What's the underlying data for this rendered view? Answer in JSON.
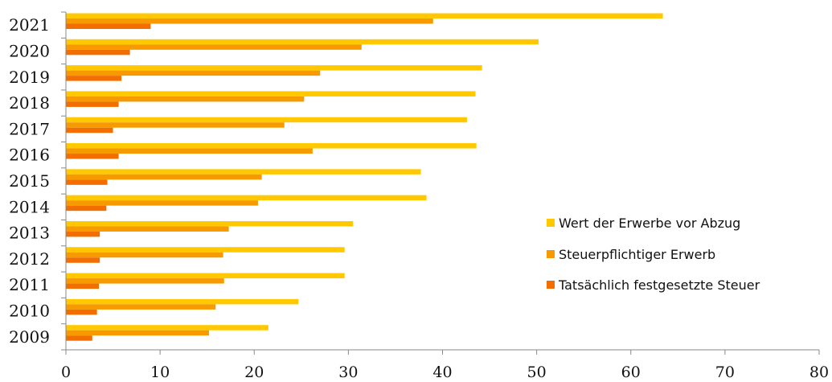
{
  "chart_data": {
    "type": "bar",
    "orientation": "horizontal",
    "categories": [
      "2021",
      "2020",
      "2019",
      "2018",
      "2017",
      "2016",
      "2015",
      "2014",
      "2013",
      "2012",
      "2011",
      "2010",
      "2009"
    ],
    "series": [
      {
        "name": "Wert der Erwerbe vor Abzug",
        "color": "#FFC800",
        "values": [
          63.4,
          50.2,
          44.2,
          43.5,
          42.6,
          43.6,
          37.7,
          38.3,
          30.5,
          29.6,
          29.6,
          24.7,
          21.5
        ]
      },
      {
        "name": "Steuerpflichtiger Erwerb",
        "color": "#F79A00",
        "values": [
          39.0,
          31.4,
          27.0,
          25.3,
          23.2,
          26.2,
          20.8,
          20.4,
          17.3,
          16.7,
          16.8,
          15.9,
          15.2
        ]
      },
      {
        "name": "Tatsächlich festgesetzte Steuer",
        "color": "#F26E00",
        "values": [
          9.0,
          6.8,
          5.9,
          5.6,
          5.0,
          5.6,
          4.4,
          4.3,
          3.6,
          3.6,
          3.5,
          3.3,
          2.8
        ]
      }
    ],
    "x_ticks": [
      "0",
      "10",
      "20",
      "30",
      "40",
      "50",
      "60",
      "70",
      "80"
    ],
    "xlim": [
      0,
      80
    ],
    "legend_position": "right",
    "grid": false
  }
}
